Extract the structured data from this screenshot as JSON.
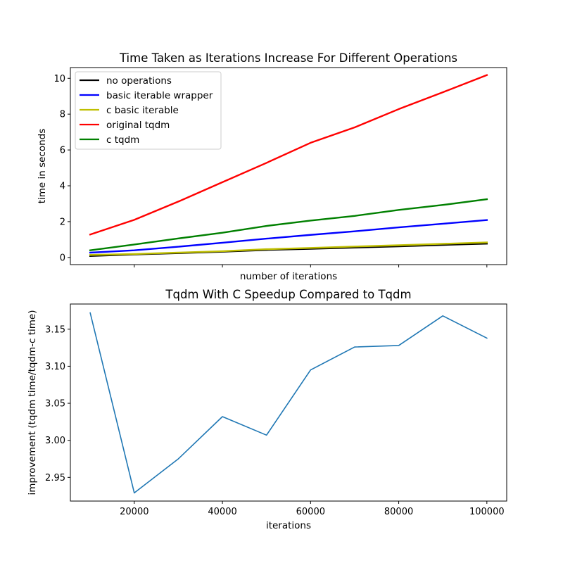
{
  "chart_data": [
    {
      "type": "line",
      "title": "Time Taken as Iterations Increase For Different Operations",
      "xlabel": "number of iterations",
      "ylabel": "time in seconds",
      "x": [
        10000,
        20000,
        30000,
        40000,
        50000,
        60000,
        70000,
        80000,
        90000,
        100000
      ],
      "xlim": [
        5500,
        104500
      ],
      "xticks": [
        20000,
        40000,
        60000,
        80000,
        100000
      ],
      "xtick_labels_shown": false,
      "ylim": [
        -0.4,
        10.6
      ],
      "yticks": [
        0,
        2,
        4,
        6,
        8,
        10
      ],
      "ytick_labels": [
        "0",
        "2",
        "4",
        "6",
        "8",
        "10"
      ],
      "grid": false,
      "legend_position": "top-left",
      "series": [
        {
          "name": "no operations",
          "color": "#000000",
          "values": [
            0.08,
            0.17,
            0.24,
            0.32,
            0.42,
            0.48,
            0.55,
            0.62,
            0.7,
            0.77
          ]
        },
        {
          "name": "basic iterable wrapper",
          "color": "#0000ff",
          "values": [
            0.27,
            0.4,
            0.6,
            0.82,
            1.05,
            1.26,
            1.46,
            1.68,
            1.88,
            2.09
          ]
        },
        {
          "name": "c basic iterable",
          "color": "#bfbf00",
          "values": [
            0.14,
            0.19,
            0.27,
            0.35,
            0.46,
            0.53,
            0.61,
            0.68,
            0.76,
            0.84
          ]
        },
        {
          "name": "original tqdm",
          "color": "#ff0000",
          "values": [
            1.28,
            2.1,
            3.12,
            4.2,
            5.28,
            6.4,
            7.26,
            8.28,
            9.22,
            10.18
          ]
        },
        {
          "name": "c tqdm",
          "color": "#008000",
          "values": [
            0.4,
            0.72,
            1.06,
            1.38,
            1.76,
            2.06,
            2.32,
            2.65,
            2.93,
            3.25
          ]
        }
      ]
    },
    {
      "type": "line",
      "title": "Tqdm With C Speedup Compared to Tqdm",
      "xlabel": "iterations",
      "ylabel": "improvement (tqdm time/tqdm-c time)",
      "x": [
        10000,
        20000,
        30000,
        40000,
        50000,
        60000,
        70000,
        80000,
        90000,
        100000
      ],
      "xlim": [
        5500,
        104500
      ],
      "xticks": [
        20000,
        40000,
        60000,
        80000,
        100000
      ],
      "xtick_labels": [
        "20000",
        "40000",
        "60000",
        "80000",
        "100000"
      ],
      "ylim": [
        2.918,
        3.184
      ],
      "yticks": [
        2.95,
        3.0,
        3.05,
        3.1,
        3.15
      ],
      "ytick_labels": [
        "2.95",
        "3.00",
        "3.05",
        "3.10",
        "3.15"
      ],
      "grid": false,
      "series": [
        {
          "color": "#1f77b4",
          "values": [
            3.172,
            2.929,
            2.975,
            3.032,
            3.007,
            3.095,
            3.126,
            3.128,
            3.168,
            3.138
          ]
        }
      ]
    }
  ]
}
